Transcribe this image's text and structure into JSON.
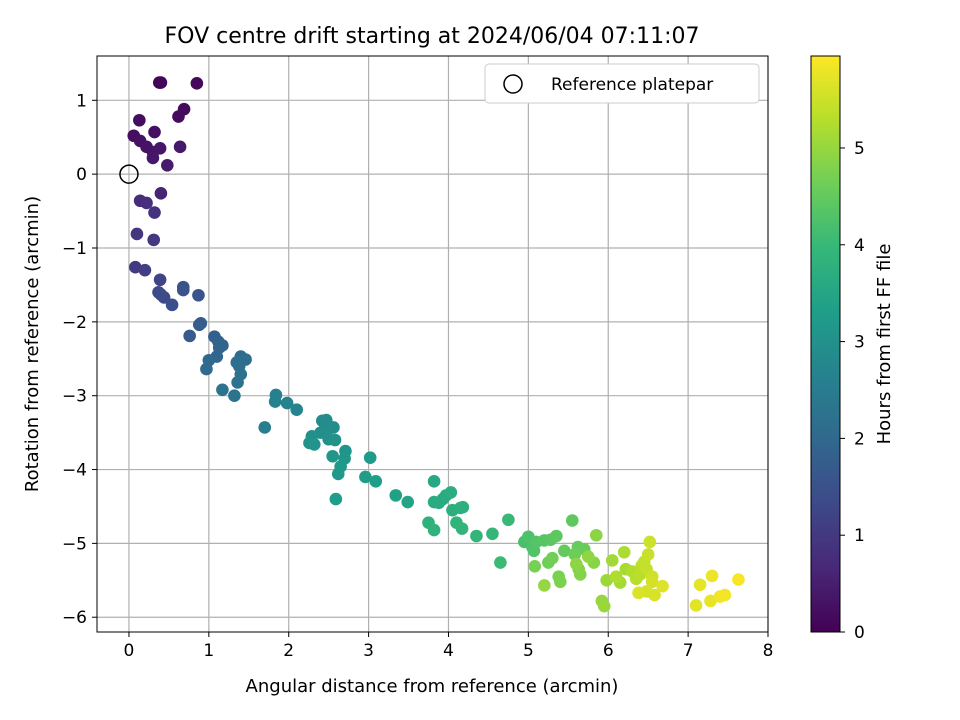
{
  "chart_data": {
    "type": "scatter",
    "title": "FOV centre drift starting at 2024/06/04 07:11:07",
    "xlabel": "Angular distance from reference (arcmin)",
    "ylabel": "Rotation from reference (arcmin)",
    "xlim": [
      -0.4,
      8.0
    ],
    "ylim": [
      -6.2,
      1.6
    ],
    "xticks": [
      "0",
      "1",
      "2",
      "3",
      "4",
      "5",
      "6",
      "7",
      "8"
    ],
    "yticks": [
      "1",
      "0",
      "−1",
      "−2",
      "−3",
      "−4",
      "−5",
      "−6"
    ],
    "grid": true,
    "legend": {
      "position": "top-right",
      "label": "Reference platepar"
    },
    "reference_point": {
      "x": 0,
      "y": 0
    },
    "colorbar": {
      "label": "Hours from first FF file",
      "ticks": [
        "0",
        "1",
        "2",
        "3",
        "4",
        "5"
      ],
      "range": [
        0,
        5.95
      ],
      "colormap": "viridis"
    },
    "points": [
      [
        0.38,
        1.24,
        0.05
      ],
      [
        0.4,
        1.24,
        0.08
      ],
      [
        0.85,
        1.23,
        0.12
      ],
      [
        0.69,
        0.88,
        0.15
      ],
      [
        0.62,
        0.78,
        0.18
      ],
      [
        0.13,
        0.73,
        0.2
      ],
      [
        0.06,
        0.52,
        0.22
      ],
      [
        0.32,
        0.57,
        0.25
      ],
      [
        0.14,
        0.45,
        0.27
      ],
      [
        0.22,
        0.37,
        0.3
      ],
      [
        0.3,
        0.3,
        0.32
      ],
      [
        0.39,
        0.35,
        0.35
      ],
      [
        0.3,
        0.22,
        0.38
      ],
      [
        0.64,
        0.37,
        0.4
      ],
      [
        0.48,
        0.12,
        0.42
      ],
      [
        0.4,
        -0.26,
        0.6
      ],
      [
        0.14,
        -0.36,
        0.75
      ],
      [
        0.22,
        -0.39,
        0.8
      ],
      [
        0.32,
        -0.52,
        0.85
      ],
      [
        0.1,
        -0.81,
        0.95
      ],
      [
        0.31,
        -0.89,
        1.0
      ],
      [
        0.08,
        -1.26,
        1.05
      ],
      [
        0.2,
        -1.3,
        1.1
      ],
      [
        0.39,
        -1.43,
        1.2
      ],
      [
        0.37,
        -1.6,
        1.3
      ],
      [
        0.44,
        -1.67,
        1.35
      ],
      [
        0.4,
        -1.63,
        1.38
      ],
      [
        0.54,
        -1.77,
        1.45
      ],
      [
        0.68,
        -1.53,
        1.5
      ],
      [
        0.68,
        -1.57,
        1.55
      ],
      [
        0.87,
        -1.64,
        1.58
      ],
      [
        0.76,
        -2.19,
        1.7
      ],
      [
        0.9,
        -2.02,
        1.75
      ],
      [
        0.88,
        -2.04,
        1.78
      ],
      [
        1.07,
        -2.2,
        1.82
      ],
      [
        1.12,
        -2.27,
        1.86
      ],
      [
        1.13,
        -2.35,
        1.9
      ],
      [
        1.17,
        -2.32,
        1.93
      ],
      [
        1.1,
        -2.47,
        1.96
      ],
      [
        1.0,
        -2.52,
        2.0
      ],
      [
        0.97,
        -2.64,
        2.03
      ],
      [
        1.4,
        -2.47,
        2.06
      ],
      [
        1.46,
        -2.51,
        2.1
      ],
      [
        1.35,
        -2.55,
        2.13
      ],
      [
        1.38,
        -2.6,
        2.16
      ],
      [
        1.4,
        -2.71,
        2.2
      ],
      [
        1.36,
        -2.82,
        2.23
      ],
      [
        1.17,
        -2.92,
        2.26
      ],
      [
        1.32,
        -3.0,
        2.3
      ],
      [
        1.7,
        -3.43,
        2.55
      ],
      [
        1.84,
        -2.99,
        2.6
      ],
      [
        1.83,
        -3.08,
        2.63
      ],
      [
        1.98,
        -3.1,
        2.66
      ],
      [
        2.1,
        -3.19,
        2.7
      ],
      [
        2.42,
        -3.34,
        2.85
      ],
      [
        2.47,
        -3.33,
        2.88
      ],
      [
        2.56,
        -3.43,
        2.9
      ],
      [
        2.48,
        -3.47,
        2.92
      ],
      [
        2.4,
        -3.5,
        2.95
      ],
      [
        2.29,
        -3.55,
        2.98
      ],
      [
        2.5,
        -3.59,
        3.0
      ],
      [
        2.58,
        -3.6,
        3.02
      ],
      [
        2.26,
        -3.64,
        3.04
      ],
      [
        2.32,
        -3.66,
        3.06
      ],
      [
        2.71,
        -3.75,
        3.1
      ],
      [
        2.7,
        -3.85,
        3.12
      ],
      [
        2.55,
        -3.82,
        3.14
      ],
      [
        2.65,
        -3.96,
        3.16
      ],
      [
        2.62,
        -4.06,
        3.18
      ],
      [
        3.02,
        -3.84,
        3.22
      ],
      [
        2.59,
        -4.4,
        3.25
      ],
      [
        2.96,
        -4.1,
        3.28
      ],
      [
        3.09,
        -4.16,
        3.32
      ],
      [
        3.34,
        -4.35,
        3.38
      ],
      [
        3.49,
        -4.44,
        3.45
      ],
      [
        3.82,
        -4.16,
        3.55
      ],
      [
        3.93,
        -4.4,
        3.6
      ],
      [
        3.88,
        -4.45,
        3.62
      ],
      [
        3.82,
        -4.44,
        3.65
      ],
      [
        3.97,
        -4.35,
        3.68
      ],
      [
        4.03,
        -4.31,
        3.7
      ],
      [
        4.05,
        -4.55,
        3.72
      ],
      [
        4.15,
        -4.52,
        3.75
      ],
      [
        4.18,
        -4.51,
        3.77
      ],
      [
        3.75,
        -4.72,
        3.8
      ],
      [
        3.82,
        -4.82,
        3.83
      ],
      [
        4.1,
        -4.72,
        3.85
      ],
      [
        4.17,
        -4.8,
        3.88
      ],
      [
        4.35,
        -4.9,
        3.92
      ],
      [
        4.55,
        -4.87,
        3.95
      ],
      [
        4.75,
        -4.68,
        4.0
      ],
      [
        4.65,
        -5.26,
        4.05
      ],
      [
        4.95,
        -4.98,
        4.2
      ],
      [
        5.0,
        -4.91,
        4.25
      ],
      [
        5.05,
        -5.05,
        4.28
      ],
      [
        5.07,
        -5.1,
        4.3
      ],
      [
        5.1,
        -4.98,
        4.33
      ],
      [
        5.2,
        -4.96,
        4.36
      ],
      [
        5.28,
        -4.95,
        4.4
      ],
      [
        5.35,
        -4.9,
        4.43
      ],
      [
        5.55,
        -4.69,
        4.46
      ],
      [
        5.45,
        -5.1,
        4.5
      ],
      [
        5.62,
        -5.05,
        4.53
      ],
      [
        5.7,
        -5.08,
        4.56
      ],
      [
        5.58,
        -5.15,
        4.6
      ],
      [
        5.25,
        -5.26,
        4.63
      ],
      [
        5.3,
        -5.2,
        4.66
      ],
      [
        5.08,
        -5.31,
        4.7
      ],
      [
        5.38,
        -5.45,
        4.73
      ],
      [
        5.4,
        -5.52,
        4.76
      ],
      [
        5.63,
        -5.35,
        4.8
      ],
      [
        5.65,
        -5.42,
        4.83
      ],
      [
        5.82,
        -5.26,
        4.86
      ],
      [
        5.85,
        -4.89,
        4.9
      ],
      [
        5.6,
        -5.28,
        4.92
      ],
      [
        5.75,
        -5.18,
        4.95
      ],
      [
        5.2,
        -5.57,
        4.98
      ],
      [
        5.92,
        -5.78,
        5.0
      ],
      [
        5.95,
        -5.85,
        5.03
      ],
      [
        5.98,
        -5.5,
        5.06
      ],
      [
        6.05,
        -5.23,
        5.1
      ],
      [
        6.15,
        -5.53,
        5.13
      ],
      [
        6.22,
        -5.35,
        5.16
      ],
      [
        6.2,
        -5.12,
        5.2
      ],
      [
        6.1,
        -5.45,
        5.23
      ],
      [
        6.3,
        -5.38,
        5.26
      ],
      [
        6.35,
        -5.48,
        5.3
      ],
      [
        6.4,
        -5.42,
        5.33
      ],
      [
        6.42,
        -5.3,
        5.36
      ],
      [
        6.45,
        -5.25,
        5.4
      ],
      [
        6.48,
        -5.35,
        5.43
      ],
      [
        6.5,
        -5.15,
        5.46
      ],
      [
        6.52,
        -4.98,
        5.5
      ],
      [
        6.55,
        -5.45,
        5.53
      ],
      [
        6.55,
        -5.52,
        5.56
      ],
      [
        6.48,
        -5.65,
        5.58
      ],
      [
        6.58,
        -5.7,
        5.6
      ],
      [
        6.38,
        -5.67,
        5.62
      ],
      [
        6.68,
        -5.58,
        5.65
      ],
      [
        7.1,
        -5.84,
        5.7
      ],
      [
        7.15,
        -5.56,
        5.73
      ],
      [
        7.28,
        -5.78,
        5.76
      ],
      [
        7.3,
        -5.44,
        5.8
      ],
      [
        7.4,
        -5.72,
        5.83
      ],
      [
        7.46,
        -5.7,
        5.86
      ],
      [
        7.63,
        -5.49,
        5.9
      ]
    ]
  }
}
